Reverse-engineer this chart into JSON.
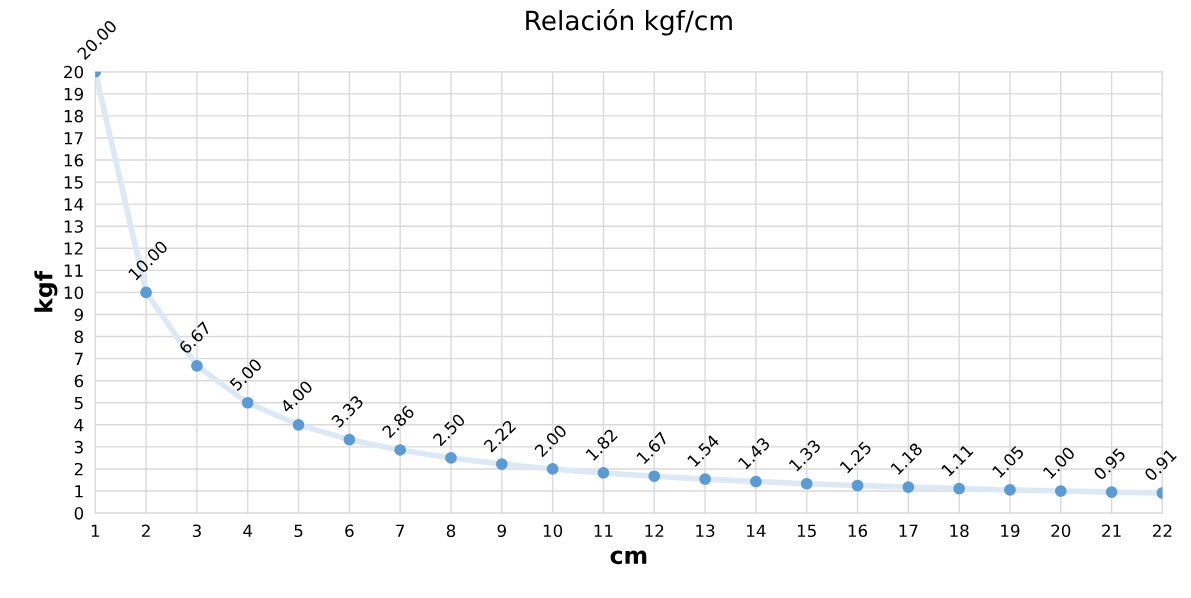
{
  "chart_data": {
    "type": "line",
    "title": "Relación kgf/cm",
    "xlabel": "cm",
    "ylabel": "kgf",
    "x": [
      1,
      2,
      3,
      4,
      5,
      6,
      7,
      8,
      9,
      10,
      11,
      12,
      13,
      14,
      15,
      16,
      17,
      18,
      19,
      20,
      21,
      22
    ],
    "series": [
      {
        "color": "#dce8f5",
        "values": [
          20,
          10,
          6.67,
          5,
          4,
          3.33,
          2.86,
          2.5,
          2.22,
          2,
          1.82,
          1.67,
          1.54,
          1.43,
          1.33,
          1.25,
          1.18,
          1.11,
          1.05,
          1,
          0.95,
          0.91
        ]
      },
      {
        "type": "scatter",
        "marker": "circle",
        "color": "#5b9bd5",
        "values": [
          20,
          10,
          6.67,
          5,
          4,
          3.33,
          2.86,
          2.5,
          2.22,
          2,
          1.82,
          1.67,
          1.54,
          1.43,
          1.33,
          1.25,
          1.18,
          1.11,
          1.05,
          1,
          0.95,
          0.91
        ],
        "value_labels": [
          "20.00",
          "10.00",
          "6.67",
          "5.00",
          "4.00",
          "3.33",
          "2.86",
          "2.50",
          "2.22",
          "2.00",
          "1.82",
          "1.67",
          "1.54",
          "1.43",
          "1.33",
          "1.25",
          "1.18",
          "1.11",
          "1.05",
          "1.00",
          "0.95",
          "0.91"
        ]
      }
    ],
    "xlim": [
      1,
      22
    ],
    "xticks": [
      1,
      2,
      3,
      4,
      5,
      6,
      7,
      8,
      9,
      10,
      11,
      12,
      13,
      14,
      15,
      16,
      17,
      18,
      19,
      20,
      21,
      22
    ],
    "ylim": [
      0,
      20
    ],
    "yticks": [
      0,
      1,
      2,
      3,
      4,
      5,
      6,
      7,
      8,
      9,
      10,
      11,
      12,
      13,
      14,
      15,
      16,
      17,
      18,
      19,
      20
    ],
    "grid": true,
    "legend": false
  }
}
